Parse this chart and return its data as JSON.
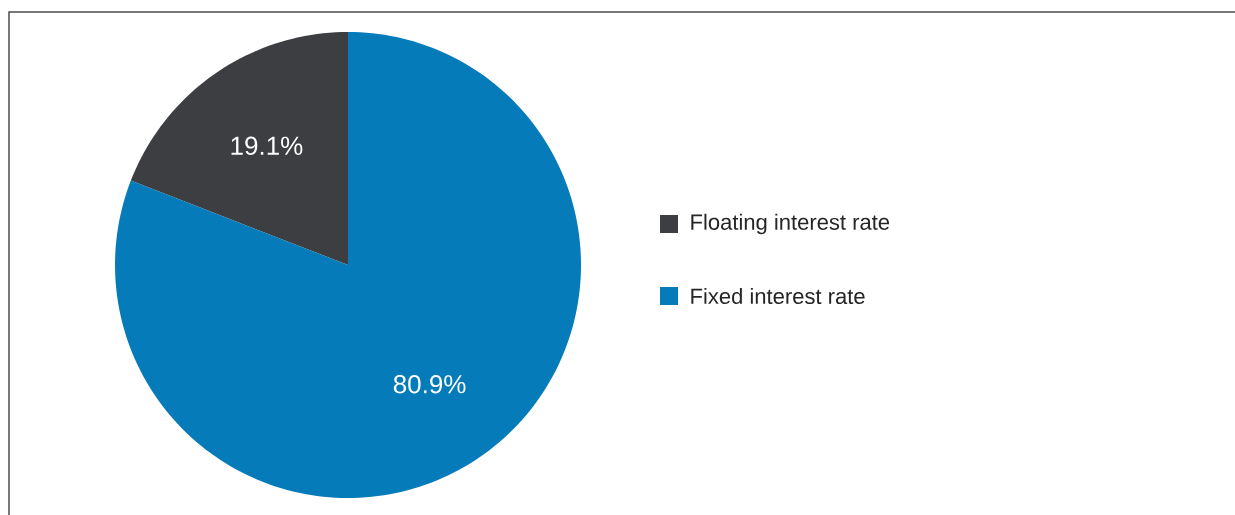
{
  "chart_data": {
    "type": "pie",
    "categories": [
      "Floating interest rate",
      "Fixed interest rate"
    ],
    "values": [
      19.1,
      80.9
    ],
    "colors": [
      "#3d3e41",
      "#067bb9"
    ],
    "value_labels": [
      "19.1%",
      "80.9%"
    ],
    "legend": "right"
  }
}
